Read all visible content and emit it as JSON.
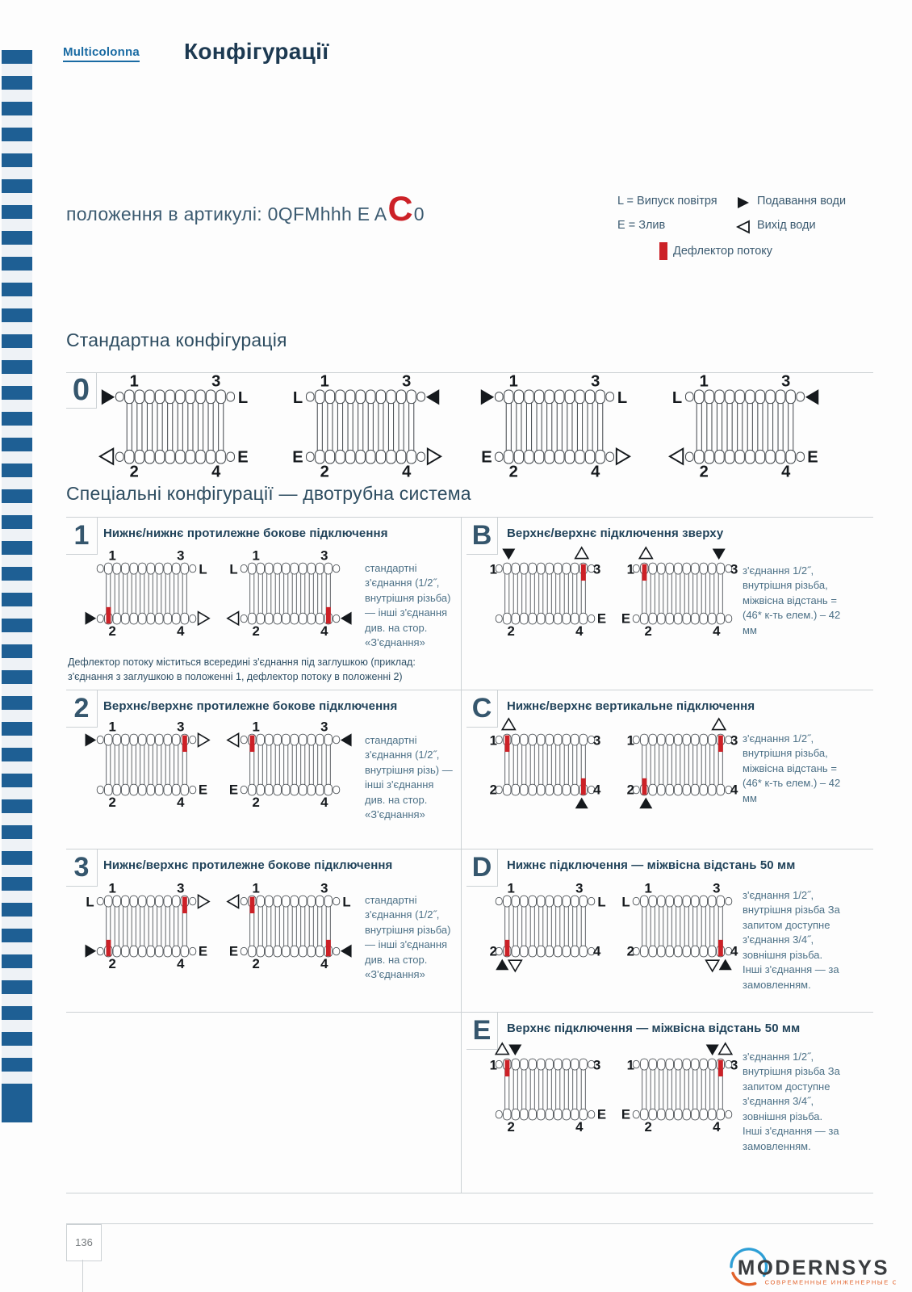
{
  "page": {
    "brand": "Multicolonna",
    "title": "Конфігурації",
    "article": {
      "prefix": "положення в артикулі: 0QFMhhh E A",
      "highlight": "C",
      "suffix": "0"
    }
  },
  "legend": {
    "air_vent": "L = Випуск повітря",
    "drain": "E = Злив",
    "water_supply": "Подавання води",
    "water_outlet": "Вихід води",
    "flow_deflector": "Дефлектор потоку"
  },
  "sections": {
    "standard": "Стандартна конфігурація",
    "special": "Спеціальні конфігурації — двотрубна система"
  },
  "diagram_defaults": {
    "port_numbers": {
      "tl": "1",
      "tr": "3",
      "bl": "2",
      "br": "4"
    }
  },
  "standard_row": {
    "id": "0",
    "radiators": [
      {
        "tl": "FR",
        "tr": "L",
        "bl": "OL",
        "br": "E"
      },
      {
        "tl": "L",
        "tr": "FL",
        "bl": "E",
        "br": "OR"
      },
      {
        "tl": "FR",
        "tr": "L",
        "bl": "E",
        "br": "OR"
      },
      {
        "tl": "L",
        "tr": "FL",
        "bl": "OL",
        "br": "E"
      }
    ]
  },
  "left_rows": [
    {
      "id": "1",
      "title": "Нижнє/нижнє протилежне бокове підключення",
      "note": "стандартні з'єднання (1/2˝, внутрішня різьба) — інші з'єднання див. на стор. «З'єднання»",
      "footnote": "Дефлектор потоку міститься всередині з'єднання під заглушкою (приклад: з'єднання з заглушкою в положенні 1, дефлектор потоку в положенні 2)",
      "radiators": [
        {
          "tr": "L",
          "bl": "FR",
          "br": "OR",
          "defl": [
            "bottom_first"
          ]
        },
        {
          "tl": "L",
          "bl": "OL",
          "br": "FL",
          "defl": [
            "bottom_last"
          ]
        }
      ]
    },
    {
      "id": "2",
      "title": "Верхнє/верхнє протилежне бокове підключення",
      "note": "стандартні з'єднання (1/2˝, внутрішня різь) — інші з'єднання див. на стор. «З'єднання»",
      "radiators": [
        {
          "tl": "FR",
          "tr": "OR",
          "br": "E",
          "defl": [
            "top_last"
          ]
        },
        {
          "tl": "OL",
          "tr": "FL",
          "bl": "E",
          "defl": [
            "top_first"
          ]
        }
      ]
    },
    {
      "id": "3",
      "title": "Нижнє/верхнє протилежне бокове підключення",
      "note": "стандартні з'єднання (1/2˝, внутрішня різьба) — інші з'єднання див. на стор. «З'єднання»",
      "radiators": [
        {
          "tl": "L",
          "tr": "OR",
          "bl": "FR",
          "br": "E",
          "defl": [
            "top_last",
            "bottom_first"
          ]
        },
        {
          "tl": "OL",
          "tr": "L",
          "bl": "E",
          "br": "FL",
          "defl": [
            "top_first",
            "bottom_last"
          ]
        }
      ]
    }
  ],
  "right_rows": [
    {
      "id": "B",
      "title": "Верхнє/верхнє підключення зверху",
      "note": "з'єднання 1/2˝, внутрішня різьба, міжвісна відстань = (46* к-ть елем.) – 42 мм",
      "radiators": [
        {
          "above_first": [
            "FD"
          ],
          "above_last": [
            "OU"
          ],
          "br": "E",
          "defl": [
            "top_last"
          ]
        },
        {
          "above_first": [
            "OU"
          ],
          "above_last": [
            "FD"
          ],
          "bl": "E",
          "defl": [
            "top_first"
          ]
        }
      ]
    },
    {
      "id": "C",
      "title": "Нижнє/верхнє вертикальне підключення",
      "note": "з'єднання 1/2˝, внутрішня різьба, міжвісна відстань = (46* к-ть елем.) – 42 мм",
      "radiators": [
        {
          "above_first": [
            "OU"
          ],
          "below_last": [
            "FU"
          ],
          "defl": [
            "top_first",
            "bottom_last"
          ]
        },
        {
          "above_last": [
            "OU"
          ],
          "below_first": [
            "FU"
          ],
          "defl": [
            "top_last",
            "bottom_first"
          ]
        }
      ]
    },
    {
      "id": "D",
      "title": "Нижнє підключення — міжвісна відстань 50 мм",
      "note": "з'єднання 1/2˝, внутрішня різьба За запитом доступне з'єднання 3/4˝, зовнішня різьба. Інші з'єднання — за замовленням.",
      "radiators": [
        {
          "tr": "L",
          "below_first": [
            "FU",
            "OD"
          ],
          "defl": [
            "bottom_first"
          ]
        },
        {
          "tl": "L",
          "below_last": [
            "OD",
            "FU"
          ],
          "defl": [
            "bottom_last"
          ]
        }
      ]
    },
    {
      "id": "E",
      "title": "Верхнє підключення — міжвісна відстань 50 мм",
      "note": "з'єднання 1/2˝, внутрішня різьба За запитом доступне з'єднання 3/4˝, зовнішня різьба. Інші з'єднання — за замовленням.",
      "radiators": [
        {
          "above_first": [
            "OU",
            "FD"
          ],
          "br": "E",
          "defl": [
            "top_first"
          ]
        },
        {
          "above_last": [
            "FD",
            "OU"
          ],
          "bl": "E",
          "defl": [
            "top_last"
          ]
        }
      ]
    }
  ],
  "footer": {
    "page_number": "136"
  },
  "logo": {
    "name": "MODERNSYS",
    "tagline": "СОВРЕМЕННЫЕ ИНЖЕНЕРНЫЕ СИСТЕМЫ"
  },
  "colors": {
    "stripe_blue": "#1e5f94",
    "brand_blue": "#1a6ba3",
    "heading_navy": "#1c3951",
    "red": "#cc2127",
    "ink": "#15191d",
    "line_gray": "#ccd1d4",
    "note_blue": "#4d7187"
  }
}
